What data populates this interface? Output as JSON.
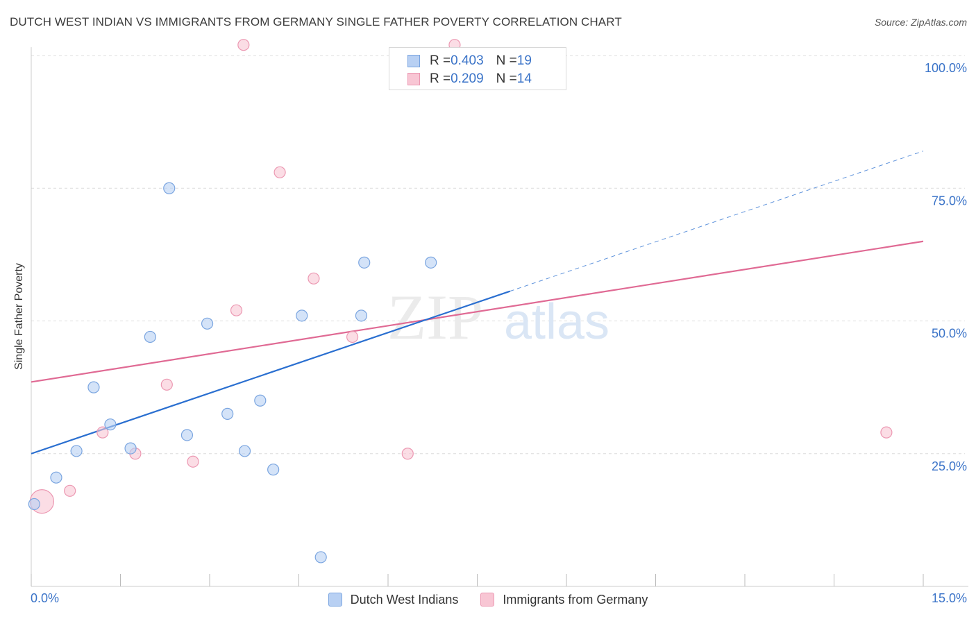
{
  "header": {
    "title": "DUTCH WEST INDIAN VS IMMIGRANTS FROM GERMANY SINGLE FATHER POVERTY CORRELATION CHART",
    "source": "Source: ZipAtlas.com"
  },
  "watermark": {
    "zip": "ZIP",
    "atlas": "atlas"
  },
  "legend_top": [
    {
      "r_label": "R = ",
      "r_value": "0.403",
      "n_label": "N = ",
      "n_value": "19"
    },
    {
      "r_label": "R = ",
      "r_value": "0.209",
      "n_label": "N = ",
      "n_value": "14"
    }
  ],
  "legend_bottom": [
    "Dutch West Indians",
    "Immigrants from Germany"
  ],
  "colors": {
    "blue_fill": "#b8d0f3",
    "blue_stroke": "#7aa5e0",
    "blue_line": "#2a6fd0",
    "pink_fill": "#f8c6d4",
    "pink_stroke": "#ec98b2",
    "pink_line": "#e06a94",
    "axis_text": "#3a73c8",
    "grid": "#dcdcdc"
  },
  "chart_data": {
    "type": "scatter",
    "title": "DUTCH WEST INDIAN VS IMMIGRANTS FROM GERMANY SINGLE FATHER POVERTY CORRELATION CHART",
    "xlabel": "",
    "ylabel": "Single Father Poverty",
    "xlim": [
      0,
      15
    ],
    "ylim": [
      0,
      100
    ],
    "x_tick_labels": [
      "0.0%",
      "15.0%"
    ],
    "y_ticks": [
      25,
      50,
      75,
      100
    ],
    "y_tick_labels": [
      "25.0%",
      "50.0%",
      "75.0%",
      "100.0%"
    ],
    "grid": true,
    "series": [
      {
        "name": "Dutch West Indians",
        "color": "#b8d0f3",
        "r": 0.403,
        "n": 19,
        "points": [
          {
            "x": 0.05,
            "y": 15.5
          },
          {
            "x": 0.42,
            "y": 20.5
          },
          {
            "x": 0.76,
            "y": 25.5
          },
          {
            "x": 1.05,
            "y": 37.5
          },
          {
            "x": 1.33,
            "y": 30.5
          },
          {
            "x": 1.67,
            "y": 26.0
          },
          {
            "x": 2.0,
            "y": 47.0
          },
          {
            "x": 2.32,
            "y": 75.0
          },
          {
            "x": 2.62,
            "y": 28.5
          },
          {
            "x": 2.96,
            "y": 49.5
          },
          {
            "x": 3.3,
            "y": 32.5
          },
          {
            "x": 3.59,
            "y": 25.5
          },
          {
            "x": 3.85,
            "y": 35.0
          },
          {
            "x": 4.07,
            "y": 22.0
          },
          {
            "x": 4.55,
            "y": 51.0
          },
          {
            "x": 4.87,
            "y": 5.5
          },
          {
            "x": 5.55,
            "y": 51.0
          },
          {
            "x": 5.6,
            "y": 61.0
          },
          {
            "x": 6.72,
            "y": 61.0
          }
        ],
        "trend": {
          "x": [
            0,
            8.05
          ],
          "y": [
            25.0,
            55.6
          ],
          "extended_to": {
            "x": 15.0,
            "y": 82.0
          }
        }
      },
      {
        "name": "Immigrants from Germany",
        "color": "#f8c6d4",
        "r": 0.209,
        "n": 14,
        "points": [
          {
            "x": 0.18,
            "y": 16.0,
            "size": "large"
          },
          {
            "x": 0.65,
            "y": 18.0
          },
          {
            "x": 1.2,
            "y": 29.0
          },
          {
            "x": 1.75,
            "y": 25.0
          },
          {
            "x": 2.28,
            "y": 38.0
          },
          {
            "x": 2.72,
            "y": 23.5
          },
          {
            "x": 3.45,
            "y": 52.0
          },
          {
            "x": 3.57,
            "y": 102.0
          },
          {
            "x": 4.18,
            "y": 78.0
          },
          {
            "x": 4.75,
            "y": 58.0
          },
          {
            "x": 5.4,
            "y": 47.0
          },
          {
            "x": 6.33,
            "y": 25.0
          },
          {
            "x": 7.12,
            "y": 102.0
          },
          {
            "x": 14.38,
            "y": 29.0
          }
        ],
        "trend": {
          "x": [
            0,
            15.0
          ],
          "y": [
            38.5,
            65.0
          ]
        }
      }
    ]
  }
}
